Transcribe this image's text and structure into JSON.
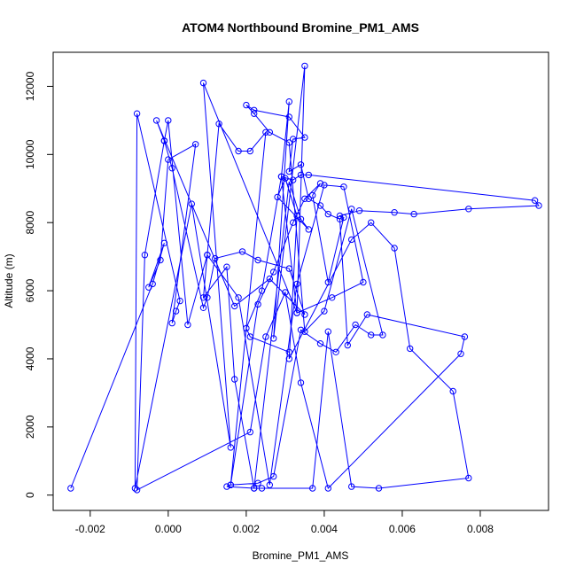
{
  "chart_data": {
    "type": "scatter",
    "title": "ATOM4 Northbound Bromine_PM1_AMS",
    "xlabel": "Bromine_PM1_AMS",
    "ylabel": "Altitude (m)",
    "xlim": [
      -0.00295,
      0.00975
    ],
    "ylim": [
      -450,
      13000
    ],
    "xticks": [
      -0.002,
      0.0,
      0.002,
      0.004,
      0.006,
      0.008
    ],
    "xtick_labels": [
      "-0.002",
      "0.000",
      "0.002",
      "0.004",
      "0.006",
      "0.008"
    ],
    "yticks": [
      0,
      2000,
      4000,
      6000,
      8000,
      10000,
      12000
    ],
    "ytick_labels": [
      "0",
      "2000",
      "4000",
      "6000",
      "8000",
      "10000",
      "12000"
    ],
    "grid": false,
    "colors": {
      "series": "#0000ff",
      "axes": "#000000",
      "background": "#ffffff"
    },
    "series": [
      {
        "mode": "lines+markers",
        "x": [
          -0.0025,
          -0.0004,
          -0.0001,
          -0.0005,
          -0.0002,
          0.0,
          0.0007,
          0.0001,
          0.0002,
          0.0003,
          -0.0008,
          -0.00085,
          0.0006,
          0.0016,
          0.0009,
          0.0033,
          0.0035,
          0.0027,
          0.0031,
          0.0029,
          0.0032,
          0.0034,
          0.0036,
          0.0094,
          0.0095,
          0.0077,
          0.0063,
          0.0058,
          0.0049,
          0.0044,
          0.0045,
          0.0041,
          0.0037,
          0.0039,
          0.0035,
          0.0032,
          0.0027,
          0.0023,
          0.0016,
          0.0025,
          0.0021,
          0.0018,
          0.0013,
          0.001,
          0.0009,
          0.0015,
          0.0017,
          0.0022,
          0.0031,
          0.0034,
          0.0036,
          0.0028,
          0.003,
          0.0033,
          0.0031,
          0.0047,
          0.0052,
          0.0058,
          0.0062,
          0.0073,
          0.0077,
          0.0054,
          0.0047,
          0.0041,
          0.0037,
          0.0024,
          0.0022,
          0.0015,
          0.0016,
          0.0023,
          0.0027,
          0.0034,
          0.0039,
          0.0043,
          0.0048,
          0.0052,
          0.0055,
          0.0047,
          0.004,
          0.0035,
          0.0031,
          0.0026,
          0.0022,
          0.002,
          0.0022,
          0.0031,
          0.0035,
          0.0032,
          0.0031,
          0.0034,
          0.0036,
          0.0039,
          0.0041,
          0.0044,
          0.0046,
          0.0051,
          0.0076,
          0.0075,
          0.0041,
          0.0034,
          0.003,
          0.0025,
          0.0021,
          -0.0008,
          -0.0006,
          -0.0001,
          0.0001,
          0.0009,
          0.001,
          0.0012,
          0.0019,
          0.0023,
          0.0031,
          0.0035,
          0.0026,
          0.0017,
          -0.0003,
          -0.0001,
          0.0,
          0.0005,
          0.001,
          0.0018,
          0.0026,
          0.0033,
          0.004,
          0.0045,
          0.005,
          0.0042,
          0.0033,
          0.0029,
          0.0024,
          0.002,
          0.0021,
          0.0031
        ],
        "y": [
          200,
          6200,
          7400,
          6100,
          6900,
          9850,
          10300,
          5050,
          5400,
          5700,
          11200,
          200,
          8550,
          1400,
          12100,
          5350,
          12600,
          4600,
          11550,
          9350,
          9250,
          9400,
          9400,
          8650,
          8500,
          8400,
          8250,
          8300,
          8350,
          8200,
          8150,
          6250,
          8800,
          9150,
          8700,
          8000,
          6550,
          5600,
          300,
          10650,
          10100,
          10100,
          10900,
          7050,
          5800,
          6700,
          3400,
          200,
          9200,
          8100,
          7800,
          8750,
          9300,
          8200,
          4000,
          7500,
          8000,
          7250,
          4300,
          3050,
          500,
          200,
          250,
          4800,
          200,
          200,
          200,
          250,
          300,
          350,
          550,
          4850,
          4450,
          4200,
          5000,
          4700,
          4700,
          8400,
          5400,
          4800,
          10350,
          10650,
          11200,
          11450,
          11300,
          11100,
          10500,
          10450,
          9500,
          9700,
          8700,
          8500,
          8250,
          8100,
          4400,
          5300,
          4650,
          4150,
          200,
          3300,
          5950,
          4650,
          1850,
          150,
          7050,
          10400,
          9600,
          5500,
          5800,
          6950,
          7150,
          6900,
          6650,
          5300,
          6350,
          5550,
          11000,
          10400,
          11000,
          5000,
          7050,
          5800,
          300,
          6200,
          9100,
          9050,
          6250,
          5800,
          5350,
          9350,
          6000,
          4900,
          4650,
          4200
        ]
      }
    ]
  }
}
